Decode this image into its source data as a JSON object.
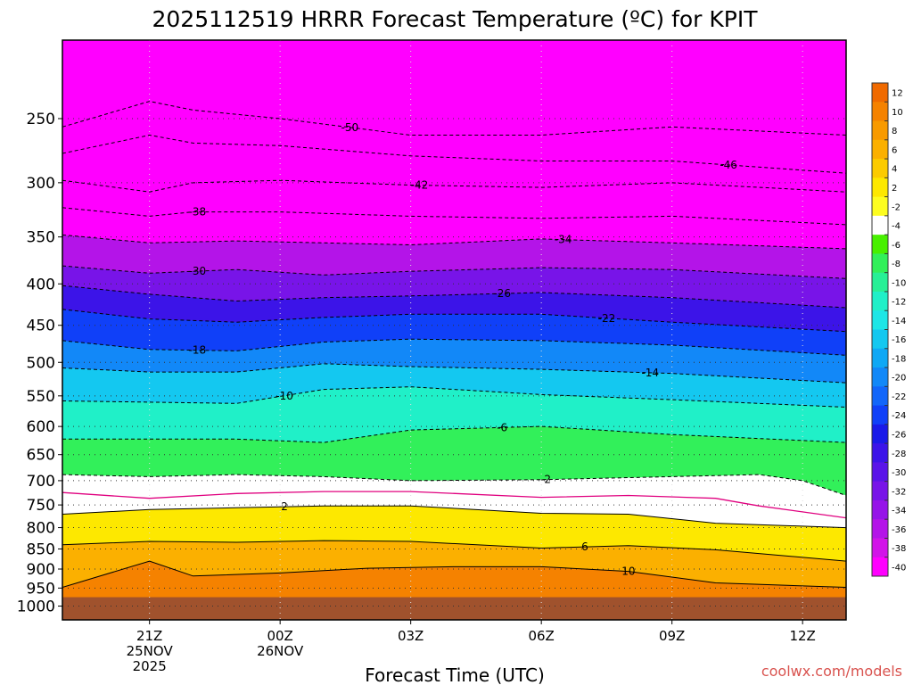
{
  "chart_data": {
    "type": "heatmap",
    "title": "2025112519 HRRR Forecast Temperature (ºC) for KPIT",
    "xlabel": "Forecast Time (UTC)",
    "ylabel": "",
    "x_ticks": [
      {
        "hour": 2,
        "lines": [
          "21Z",
          "25NOV",
          "2025"
        ]
      },
      {
        "hour": 5,
        "lines": [
          "00Z",
          "26NOV"
        ]
      },
      {
        "hour": 8,
        "lines": [
          "03Z"
        ]
      },
      {
        "hour": 11,
        "lines": [
          "06Z"
        ]
      },
      {
        "hour": 14,
        "lines": [
          "09Z"
        ]
      },
      {
        "hour": 17,
        "lines": [
          "12Z"
        ]
      }
    ],
    "x_range_hours": [
      0,
      18
    ],
    "y_ticks": [
      "250",
      "300",
      "350",
      "400",
      "450",
      "500",
      "550",
      "600",
      "650",
      "700",
      "750",
      "800",
      "850",
      "900",
      "950",
      "1000"
    ],
    "y_range_hpa": [
      200,
      1040
    ],
    "y_scale": "log",
    "ground_level_hpa": 975,
    "colorbar": {
      "levels": [
        "12",
        "10",
        "8",
        "6",
        "4",
        "2",
        "-2",
        "-4",
        "-6",
        "-8",
        "-10",
        "-12",
        "-14",
        "-16",
        "-18",
        "-20",
        "-22",
        "-24",
        "-26",
        "-28",
        "-30",
        "-32",
        "-34",
        "-36",
        "-38",
        "-40"
      ],
      "colors": [
        "#f06a00",
        "#f58200",
        "#f89a00",
        "#fbb000",
        "#fccb00",
        "#fde800",
        "#fdfd20",
        "#ffffff",
        "#48f000",
        "#32f05a",
        "#28f096",
        "#20f0c8",
        "#1ee6e6",
        "#14c8f0",
        "#0fa8f5",
        "#1288f8",
        "#1266fa",
        "#1040f8",
        "#1a1ae8",
        "#3c14e8",
        "#5a14e8",
        "#7814e8",
        "#9614e8",
        "#b414e8",
        "#d214e8",
        "#ff00ff"
      ]
    },
    "colors": {
      "ground": "#a0522d",
      "freezing_line": "#e0007f"
    },
    "contours": [
      {
        "value": "-50",
        "label_hour": 6.6,
        "points": [
          [
            0,
            256
          ],
          [
            2,
            238
          ],
          [
            3,
            244
          ],
          [
            5,
            250
          ],
          [
            8,
            262
          ],
          [
            11,
            262
          ],
          [
            14,
            256
          ],
          [
            18,
            262
          ]
        ]
      },
      {
        "value": "-46",
        "label_hour": 15.3,
        "points": [
          [
            0,
            276
          ],
          [
            2,
            262
          ],
          [
            3,
            268
          ],
          [
            5,
            270
          ],
          [
            8,
            278
          ],
          [
            11,
            282
          ],
          [
            14,
            282
          ],
          [
            18,
            292
          ]
        ]
      },
      {
        "value": "-42",
        "label_hour": 8.2,
        "points": [
          [
            0,
            298
          ],
          [
            2,
            308
          ],
          [
            3,
            300
          ],
          [
            5,
            298
          ],
          [
            8,
            302
          ],
          [
            11,
            304
          ],
          [
            14,
            300
          ],
          [
            18,
            308
          ]
        ]
      },
      {
        "value": "-38",
        "label_hour": 3.1,
        "points": [
          [
            0,
            322
          ],
          [
            2,
            330
          ],
          [
            3,
            326
          ],
          [
            5,
            326
          ],
          [
            8,
            330
          ],
          [
            11,
            332
          ],
          [
            14,
            330
          ],
          [
            18,
            338
          ]
        ]
      },
      {
        "value": "-34",
        "label_hour": 11.5,
        "points": [
          [
            0,
            348
          ],
          [
            2,
            356
          ],
          [
            4,
            354
          ],
          [
            6,
            356
          ],
          [
            8,
            358
          ],
          [
            11,
            352
          ],
          [
            14,
            356
          ],
          [
            18,
            362
          ]
        ]
      },
      {
        "value": "-30",
        "label_hour": 3.1,
        "points": [
          [
            0,
            380
          ],
          [
            2,
            388
          ],
          [
            4,
            384
          ],
          [
            6,
            390
          ],
          [
            8,
            386
          ],
          [
            11,
            382
          ],
          [
            14,
            384
          ],
          [
            18,
            394
          ]
        ]
      },
      {
        "value": "-26",
        "label_hour": 10.1,
        "points": [
          [
            0,
            402
          ],
          [
            2,
            412
          ],
          [
            4,
            420
          ],
          [
            6,
            416
          ],
          [
            8,
            414
          ],
          [
            11,
            410
          ],
          [
            14,
            416
          ],
          [
            18,
            428
          ]
        ]
      },
      {
        "value": "-22",
        "label_hour": 12.5,
        "points": [
          [
            0,
            430
          ],
          [
            2,
            442
          ],
          [
            4,
            446
          ],
          [
            6,
            440
          ],
          [
            8,
            436
          ],
          [
            11,
            436
          ],
          [
            14,
            446
          ],
          [
            18,
            458
          ]
        ]
      },
      {
        "value": "-18",
        "label_hour": 3.1,
        "points": [
          [
            0,
            470
          ],
          [
            2,
            482
          ],
          [
            4,
            484
          ],
          [
            6,
            472
          ],
          [
            8,
            468
          ],
          [
            11,
            470
          ],
          [
            14,
            476
          ],
          [
            18,
            490
          ]
        ]
      },
      {
        "value": "-14",
        "label_hour": 13.5,
        "points": [
          [
            0,
            508
          ],
          [
            2,
            514
          ],
          [
            4,
            514
          ],
          [
            6,
            502
          ],
          [
            8,
            506
          ],
          [
            11,
            510
          ],
          [
            14,
            516
          ],
          [
            18,
            530
          ]
        ]
      },
      {
        "value": "-10",
        "label_hour": 5.1,
        "points": [
          [
            0,
            558
          ],
          [
            2,
            560
          ],
          [
            4,
            562
          ],
          [
            6,
            540
          ],
          [
            8,
            536
          ],
          [
            11,
            548
          ],
          [
            14,
            556
          ],
          [
            18,
            568
          ]
        ]
      },
      {
        "value": "-6",
        "label_hour": 10.1,
        "points": [
          [
            0,
            622
          ],
          [
            2,
            622
          ],
          [
            4,
            622
          ],
          [
            6,
            628
          ],
          [
            8,
            606
          ],
          [
            11,
            600
          ],
          [
            14,
            614
          ],
          [
            18,
            628
          ]
        ]
      },
      {
        "value": "-2",
        "label_hour": 11.1,
        "points": [
          [
            0,
            688
          ],
          [
            2,
            692
          ],
          [
            4,
            688
          ],
          [
            6,
            692
          ],
          [
            8,
            700
          ],
          [
            11,
            698
          ],
          [
            14,
            692
          ],
          [
            16,
            688
          ],
          [
            17,
            700
          ],
          [
            18,
            730
          ]
        ]
      },
      {
        "value": "2",
        "label_hour": 5.1,
        "points": [
          [
            0,
            770
          ],
          [
            2,
            760
          ],
          [
            4,
            756
          ],
          [
            6,
            752
          ],
          [
            8,
            752
          ],
          [
            11,
            768
          ],
          [
            13,
            770
          ],
          [
            15,
            790
          ],
          [
            18,
            800
          ]
        ]
      },
      {
        "value": "6",
        "label_hour": 12.0,
        "points": [
          [
            0,
            840
          ],
          [
            2,
            832
          ],
          [
            4,
            834
          ],
          [
            6,
            830
          ],
          [
            8,
            832
          ],
          [
            11,
            848
          ],
          [
            13,
            842
          ],
          [
            15,
            852
          ],
          [
            18,
            880
          ]
        ]
      },
      {
        "value": "10",
        "label_hour": 13.0,
        "points": [
          [
            0,
            948
          ],
          [
            2,
            880
          ],
          [
            3,
            918
          ],
          [
            5,
            910
          ],
          [
            7,
            898
          ],
          [
            9,
            894
          ],
          [
            11,
            894
          ],
          [
            13,
            906
          ],
          [
            15,
            936
          ],
          [
            18,
            948
          ]
        ]
      }
    ],
    "freezing_line": [
      [
        0,
        724
      ],
      [
        2,
        736
      ],
      [
        4,
        726
      ],
      [
        6,
        722
      ],
      [
        8,
        722
      ],
      [
        11,
        734
      ],
      [
        13,
        730
      ],
      [
        15,
        736
      ],
      [
        16,
        752
      ],
      [
        18,
        778
      ]
    ],
    "grid": true,
    "legend": "colorbar-right"
  },
  "credit": "coolwx.com/models"
}
